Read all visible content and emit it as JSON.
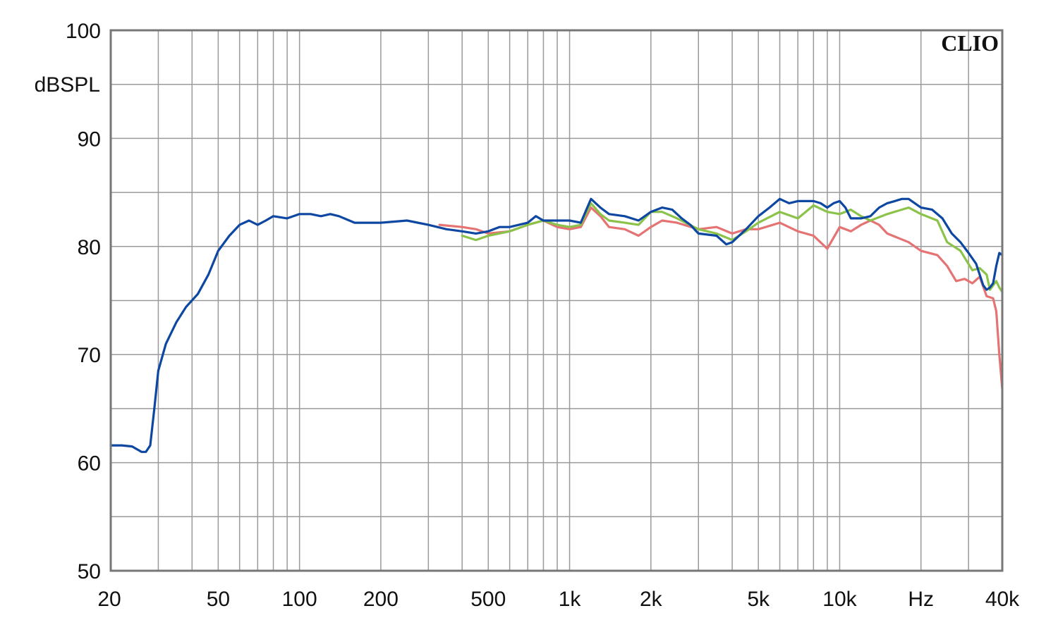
{
  "chart_data": {
    "type": "line",
    "brand": "CLIO",
    "ylabel": "dBSPL",
    "x_unit_label": "Hz",
    "xscale": "log",
    "xlim": [
      20,
      40000
    ],
    "ylim": [
      50,
      100
    ],
    "grid": true,
    "yticks": [
      {
        "value": 50,
        "label": "50"
      },
      {
        "value": 60,
        "label": "60"
      },
      {
        "value": 70,
        "label": "70"
      },
      {
        "value": 80,
        "label": "80"
      },
      {
        "value": 90,
        "label": "90"
      },
      {
        "value": 100,
        "label": "100"
      }
    ],
    "xticks": [
      {
        "value": 20,
        "label": "20"
      },
      {
        "value": 50,
        "label": "50"
      },
      {
        "value": 100,
        "label": "100"
      },
      {
        "value": 200,
        "label": "200"
      },
      {
        "value": 500,
        "label": "500"
      },
      {
        "value": 1000,
        "label": "1k"
      },
      {
        "value": 2000,
        "label": "2k"
      },
      {
        "value": 5000,
        "label": "5k"
      },
      {
        "value": 10000,
        "label": "10k"
      },
      {
        "value": 20000,
        "label": "Hz"
      },
      {
        "value": 40000,
        "label": "40k"
      }
    ],
    "series": [
      {
        "color": "#e57373",
        "points": [
          [
            330,
            82.0
          ],
          [
            400,
            81.8
          ],
          [
            450,
            81.6
          ],
          [
            500,
            81.2
          ],
          [
            600,
            81.4
          ],
          [
            700,
            82.0
          ],
          [
            800,
            82.4
          ],
          [
            900,
            81.8
          ],
          [
            1000,
            81.6
          ],
          [
            1100,
            81.8
          ],
          [
            1200,
            83.6
          ],
          [
            1300,
            82.8
          ],
          [
            1400,
            81.8
          ],
          [
            1600,
            81.6
          ],
          [
            1800,
            81.0
          ],
          [
            2000,
            81.8
          ],
          [
            2200,
            82.4
          ],
          [
            2500,
            82.2
          ],
          [
            3000,
            81.6
          ],
          [
            3500,
            81.8
          ],
          [
            4000,
            81.2
          ],
          [
            4500,
            81.6
          ],
          [
            5000,
            81.6
          ],
          [
            6000,
            82.2
          ],
          [
            7000,
            81.4
          ],
          [
            8000,
            81.0
          ],
          [
            9000,
            79.8
          ],
          [
            10000,
            81.8
          ],
          [
            11000,
            81.4
          ],
          [
            12000,
            82.0
          ],
          [
            13000,
            82.4
          ],
          [
            14000,
            82.0
          ],
          [
            15000,
            81.2
          ],
          [
            18000,
            80.4
          ],
          [
            20000,
            79.6
          ],
          [
            23000,
            79.2
          ],
          [
            25000,
            78.2
          ],
          [
            27000,
            76.8
          ],
          [
            29000,
            77.0
          ],
          [
            31000,
            76.6
          ],
          [
            33000,
            77.2
          ],
          [
            35000,
            75.4
          ],
          [
            37000,
            75.2
          ],
          [
            38000,
            74.0
          ],
          [
            39000,
            70.0
          ],
          [
            40000,
            66.8
          ]
        ]
      },
      {
        "color": "#8bc34a",
        "points": [
          [
            400,
            81.0
          ],
          [
            450,
            80.6
          ],
          [
            500,
            81.0
          ],
          [
            600,
            81.4
          ],
          [
            700,
            82.0
          ],
          [
            800,
            82.4
          ],
          [
            900,
            82.0
          ],
          [
            1000,
            81.8
          ],
          [
            1100,
            82.0
          ],
          [
            1200,
            84.0
          ],
          [
            1300,
            83.0
          ],
          [
            1400,
            82.4
          ],
          [
            1600,
            82.2
          ],
          [
            1800,
            82.0
          ],
          [
            2000,
            83.2
          ],
          [
            2200,
            83.2
          ],
          [
            2500,
            82.6
          ],
          [
            3000,
            81.6
          ],
          [
            3500,
            81.2
          ],
          [
            4000,
            80.6
          ],
          [
            4500,
            81.4
          ],
          [
            5000,
            82.2
          ],
          [
            6000,
            83.2
          ],
          [
            7000,
            82.6
          ],
          [
            8000,
            83.8
          ],
          [
            9000,
            83.2
          ],
          [
            10000,
            83.0
          ],
          [
            11000,
            83.4
          ],
          [
            12000,
            82.8
          ],
          [
            13000,
            82.4
          ],
          [
            15000,
            83.0
          ],
          [
            18000,
            83.6
          ],
          [
            20000,
            83.0
          ],
          [
            23000,
            82.4
          ],
          [
            25000,
            80.4
          ],
          [
            28000,
            79.6
          ],
          [
            31000,
            77.8
          ],
          [
            33000,
            78.0
          ],
          [
            35000,
            77.4
          ],
          [
            36000,
            76.0
          ],
          [
            37000,
            76.4
          ],
          [
            38000,
            76.8
          ],
          [
            39000,
            76.2
          ],
          [
            40000,
            75.8
          ]
        ]
      },
      {
        "color": "#0d47a1",
        "points": [
          [
            20,
            61.6
          ],
          [
            22,
            61.6
          ],
          [
            24,
            61.5
          ],
          [
            26,
            61.0
          ],
          [
            27,
            61.0
          ],
          [
            28,
            61.6
          ],
          [
            29,
            65.0
          ],
          [
            30,
            68.5
          ],
          [
            32,
            71.0
          ],
          [
            35,
            73.0
          ],
          [
            38,
            74.4
          ],
          [
            42,
            75.6
          ],
          [
            46,
            77.4
          ],
          [
            50,
            79.6
          ],
          [
            55,
            81.0
          ],
          [
            60,
            82.0
          ],
          [
            65,
            82.4
          ],
          [
            70,
            82.0
          ],
          [
            75,
            82.4
          ],
          [
            80,
            82.8
          ],
          [
            90,
            82.6
          ],
          [
            100,
            83.0
          ],
          [
            110,
            83.0
          ],
          [
            120,
            82.8
          ],
          [
            130,
            83.0
          ],
          [
            140,
            82.8
          ],
          [
            160,
            82.2
          ],
          [
            180,
            82.2
          ],
          [
            200,
            82.2
          ],
          [
            250,
            82.4
          ],
          [
            300,
            82.0
          ],
          [
            350,
            81.6
          ],
          [
            400,
            81.4
          ],
          [
            450,
            81.2
          ],
          [
            500,
            81.4
          ],
          [
            550,
            81.8
          ],
          [
            600,
            81.8
          ],
          [
            700,
            82.2
          ],
          [
            750,
            82.8
          ],
          [
            800,
            82.4
          ],
          [
            900,
            82.4
          ],
          [
            1000,
            82.4
          ],
          [
            1100,
            82.2
          ],
          [
            1200,
            84.4
          ],
          [
            1300,
            83.6
          ],
          [
            1400,
            83.0
          ],
          [
            1600,
            82.8
          ],
          [
            1800,
            82.4
          ],
          [
            2000,
            83.2
          ],
          [
            2200,
            83.6
          ],
          [
            2400,
            83.4
          ],
          [
            2600,
            82.6
          ],
          [
            2800,
            82.0
          ],
          [
            3000,
            81.2
          ],
          [
            3500,
            81.0
          ],
          [
            3800,
            80.2
          ],
          [
            4000,
            80.4
          ],
          [
            4500,
            81.6
          ],
          [
            5000,
            82.8
          ],
          [
            5500,
            83.6
          ],
          [
            6000,
            84.4
          ],
          [
            6500,
            84.0
          ],
          [
            7000,
            84.2
          ],
          [
            8000,
            84.2
          ],
          [
            8500,
            84.0
          ],
          [
            9000,
            83.6
          ],
          [
            9500,
            84.0
          ],
          [
            10000,
            84.2
          ],
          [
            10500,
            83.6
          ],
          [
            11000,
            82.6
          ],
          [
            12000,
            82.6
          ],
          [
            13000,
            82.8
          ],
          [
            14000,
            83.6
          ],
          [
            15000,
            84.0
          ],
          [
            16000,
            84.2
          ],
          [
            17000,
            84.4
          ],
          [
            18000,
            84.4
          ],
          [
            20000,
            83.6
          ],
          [
            22000,
            83.4
          ],
          [
            24000,
            82.6
          ],
          [
            26000,
            81.2
          ],
          [
            28000,
            80.4
          ],
          [
            30000,
            79.4
          ],
          [
            32000,
            78.4
          ],
          [
            34000,
            76.4
          ],
          [
            35000,
            76.0
          ],
          [
            36000,
            76.2
          ],
          [
            37000,
            76.6
          ],
          [
            38000,
            78.2
          ],
          [
            39000,
            79.4
          ],
          [
            40000,
            79.2
          ]
        ]
      }
    ]
  }
}
